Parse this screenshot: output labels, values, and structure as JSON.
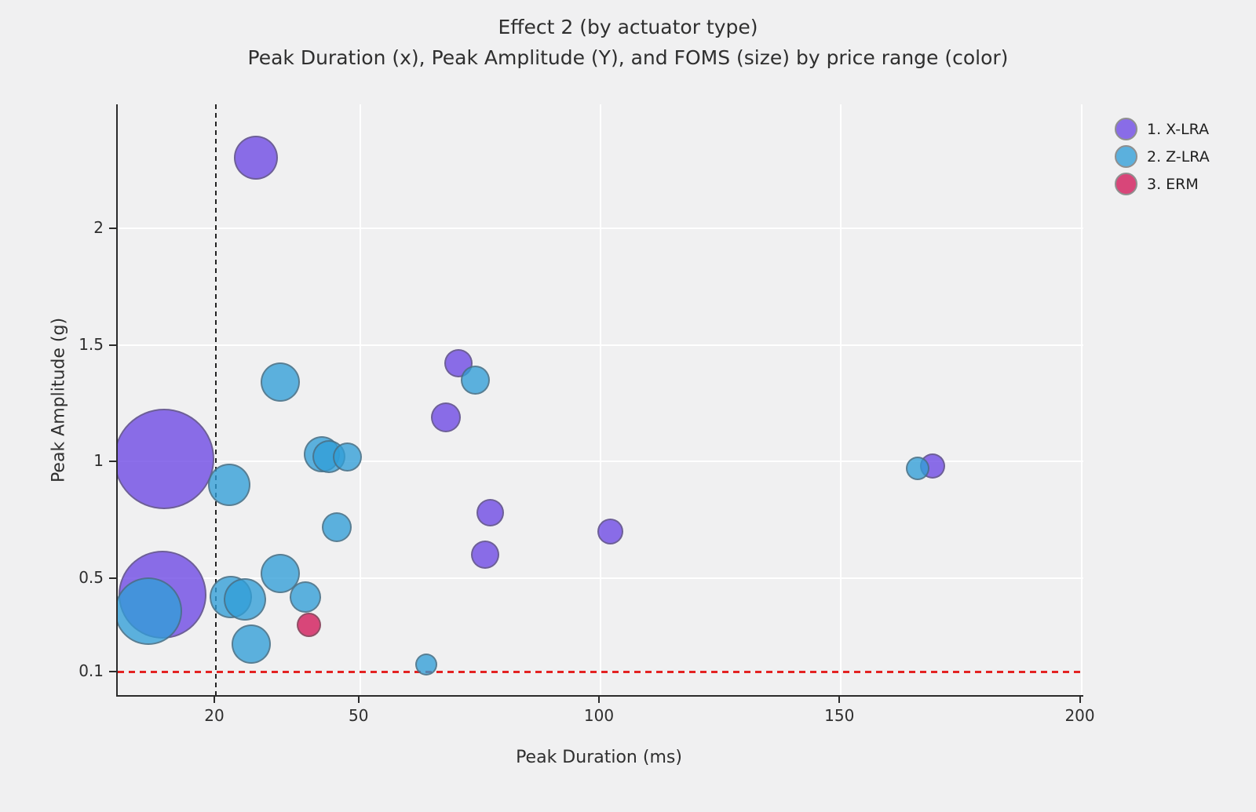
{
  "title": "Effect 2 (by actuator type)",
  "subtitle": "Peak Duration (x), Peak Amplitude (Y), and FOMS (size) by price range (color)",
  "legend": {
    "items": [
      {
        "label": "1. X-LRA",
        "color": "rgba(108,71,228,0.78)"
      },
      {
        "label": "2. Z-LRA",
        "color": "rgba(49,158,215,0.78)"
      },
      {
        "label": "3. ERM",
        "color": "rgba(211,40,100,0.85)"
      }
    ]
  },
  "chart_data": {
    "type": "scatter",
    "subtype": "bubble",
    "title": "Effect 2 (by actuator type)",
    "subtitle": "Peak Duration (x), Peak Amplitude (Y), and FOMS (size) by price range (color)",
    "xlabel": "Peak Duration (ms)",
    "ylabel": "Peak Amplitude (g)",
    "x_range": [
      -0.4,
      200.4
    ],
    "y_range": [
      0,
      2.53
    ],
    "x_ticks": [
      {
        "v": 20,
        "label": "20"
      },
      {
        "v": 50,
        "label": "50"
      },
      {
        "v": 100,
        "label": "100"
      },
      {
        "v": 150,
        "label": "150"
      },
      {
        "v": 200,
        "label": "200"
      }
    ],
    "y_ticks": [
      {
        "v": 0.1,
        "label": "0.1"
      },
      {
        "v": 0.5,
        "label": "0.5"
      },
      {
        "v": 1,
        "label": "1"
      },
      {
        "v": 1.5,
        "label": "1.5"
      },
      {
        "v": 2,
        "label": "2"
      }
    ],
    "x_gridlines": [
      50,
      100,
      150,
      200
    ],
    "y_gridlines": [
      0.5,
      1,
      1.5,
      2
    ],
    "grid_color": "#ffffff",
    "ref_lines": {
      "vline": {
        "x": 20,
        "style": "dashed",
        "color": "#222222"
      },
      "hline": {
        "y": 0.1,
        "style": "dashed",
        "color": "#e32222"
      }
    },
    "legend_position": "top-right",
    "size_encoding": "FOMS (bubble radius in px)",
    "series": [
      {
        "name": "1. X-LRA",
        "color": "rgba(108,71,228,0.78)",
        "points": [
          {
            "x": 28.3,
            "y": 2.3,
            "r": 28
          },
          {
            "x": 9.2,
            "y": 1.01,
            "r": 64
          },
          {
            "x": 8.9,
            "y": 0.43,
            "r": 56
          },
          {
            "x": 70.4,
            "y": 1.42,
            "r": 18
          },
          {
            "x": 67.8,
            "y": 1.19,
            "r": 19
          },
          {
            "x": 77.1,
            "y": 0.78,
            "r": 17.5
          },
          {
            "x": 76.0,
            "y": 0.6,
            "r": 18
          },
          {
            "x": 102,
            "y": 0.7,
            "r": 16.5
          },
          {
            "x": 169,
            "y": 0.98,
            "r": 16
          }
        ]
      },
      {
        "name": "2. Z-LRA",
        "color": "rgba(49,158,215,0.78)",
        "points": [
          {
            "x": 33.4,
            "y": 1.34,
            "r": 25
          },
          {
            "x": 73.9,
            "y": 1.35,
            "r": 18.5
          },
          {
            "x": 42.0,
            "y": 1.03,
            "r": 23
          },
          {
            "x": 43.5,
            "y": 1.02,
            "r": 21
          },
          {
            "x": 47.3,
            "y": 1.02,
            "r": 18.5
          },
          {
            "x": 22.8,
            "y": 0.9,
            "r": 27
          },
          {
            "x": 45.1,
            "y": 0.72,
            "r": 19
          },
          {
            "x": 33.4,
            "y": 0.52,
            "r": 25
          },
          {
            "x": 23.1,
            "y": 0.42,
            "r": 27
          },
          {
            "x": 26.0,
            "y": 0.41,
            "r": 27
          },
          {
            "x": 38.6,
            "y": 0.42,
            "r": 20
          },
          {
            "x": 27.3,
            "y": 0.22,
            "r": 25
          },
          {
            "x": 6.0,
            "y": 0.36,
            "r": 43
          },
          {
            "x": 63.8,
            "y": 0.13,
            "r": 14
          },
          {
            "x": 166,
            "y": 0.97,
            "r": 15
          }
        ]
      },
      {
        "name": "3. ERM",
        "color": "rgba(211,40,100,0.85)",
        "points": [
          {
            "x": 39.4,
            "y": 0.3,
            "r": 15.5
          }
        ]
      }
    ]
  }
}
